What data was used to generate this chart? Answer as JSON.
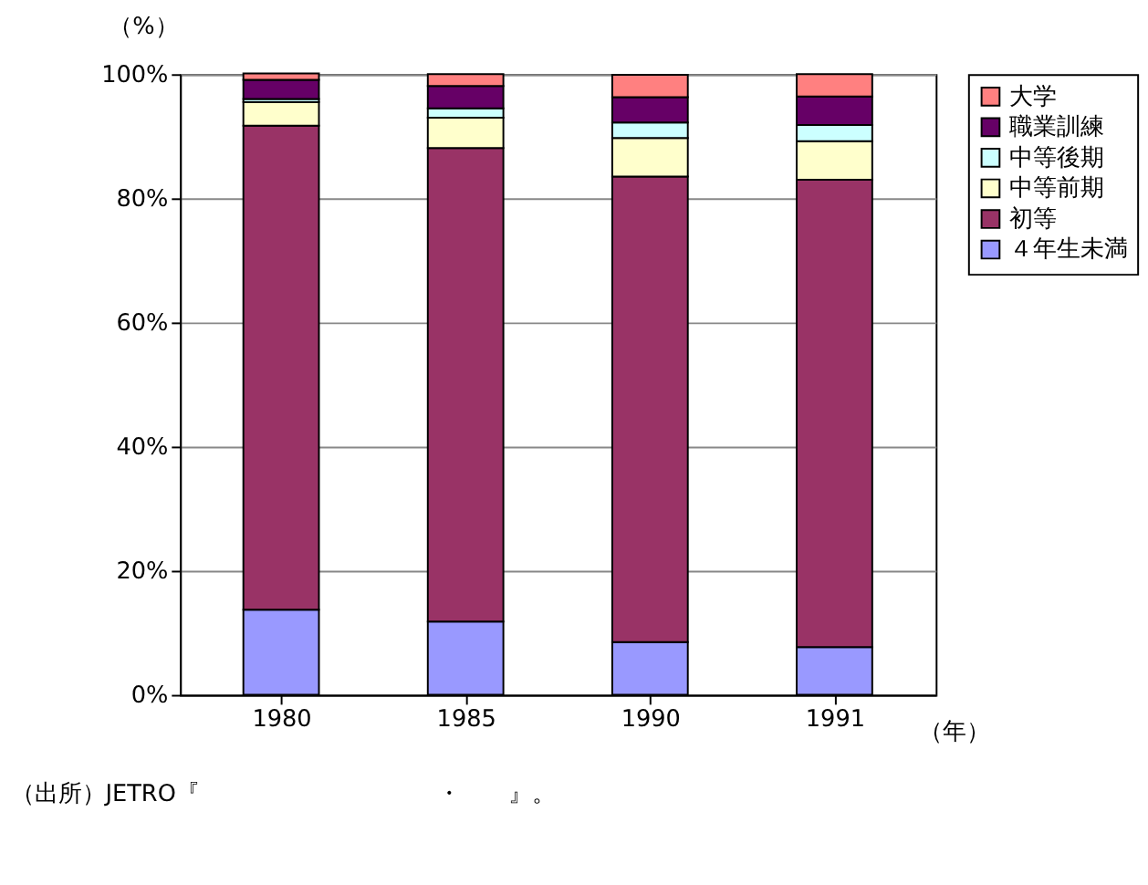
{
  "chart_data": {
    "type": "bar",
    "stacked": true,
    "ylabel": "（%）",
    "xlabel": "（年）",
    "categories": [
      "1980",
      "1985",
      "1990",
      "1991"
    ],
    "series": [
      {
        "name": "４年生未満",
        "color": "#9999ff",
        "values": [
          13.7,
          11.8,
          8.5,
          7.7
        ]
      },
      {
        "name": "初等",
        "color": "#993366",
        "values": [
          78.0,
          76.3,
          75.0,
          75.3
        ]
      },
      {
        "name": "中等前期",
        "color": "#ffffcc",
        "values": [
          3.8,
          4.9,
          6.2,
          6.2
        ]
      },
      {
        "name": "中等後期",
        "color": "#ccffff",
        "values": [
          0.5,
          1.5,
          2.5,
          2.6
        ]
      },
      {
        "name": "職業訓練",
        "color": "#660066",
        "values": [
          3.1,
          3.6,
          4.1,
          4.6
        ]
      },
      {
        "name": "大学",
        "color": "#ff8080",
        "values": [
          1.0,
          1.9,
          3.6,
          3.6
        ]
      }
    ],
    "ylim": [
      0,
      100
    ],
    "yticks": [
      {
        "value": 0,
        "label": "0%"
      },
      {
        "value": 20,
        "label": "20%"
      },
      {
        "value": 40,
        "label": "40%"
      },
      {
        "value": 60,
        "label": "60%"
      },
      {
        "value": 80,
        "label": "80%"
      },
      {
        "value": 100,
        "label": "100%"
      }
    ],
    "grid": "y",
    "legend": "right",
    "annotations": [
      "（出所）JETRO『　　　　　　　　　　・　　』。"
    ]
  }
}
